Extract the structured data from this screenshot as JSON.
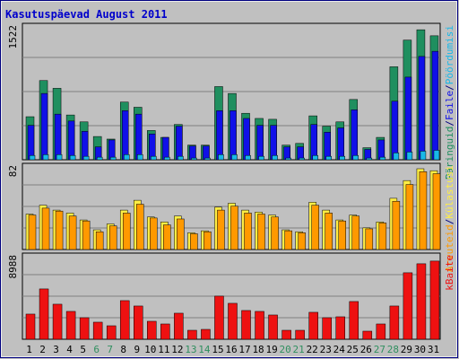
{
  "title": "Kasutuspäevad August 2011",
  "colors": {
    "background": "#c0c0c0",
    "border": "#000080",
    "title": "#0000cc",
    "label": "#000000",
    "weekend": "#2f8f5f",
    "hits": "#1f8f5f",
    "files": "#1010e8",
    "pages": "#18b8e8",
    "visits_dark": "#ff9900",
    "visits_light": "#ffee44",
    "kbytes": "#ee1111"
  },
  "chart_data": [
    {
      "type": "bar",
      "panel": "top",
      "ymax_label": "1522",
      "categories": [
        "1",
        "2",
        "3",
        "4",
        "5",
        "6",
        "7",
        "8",
        "9",
        "10",
        "11",
        "12",
        "13",
        "14",
        "15",
        "16",
        "17",
        "18",
        "19",
        "20",
        "21",
        "22",
        "23",
        "24",
        "25",
        "26",
        "27",
        "28",
        "29",
        "30",
        "31"
      ],
      "weekend_days": [
        "6",
        "7",
        "13",
        "14",
        "20",
        "21",
        "27",
        "28"
      ],
      "ylim": [
        0,
        1522
      ],
      "series": [
        {
          "name": "Päringuid",
          "color_key": "hits",
          "values": [
            500,
            920,
            830,
            520,
            440,
            270,
            240,
            670,
            610,
            340,
            260,
            410,
            170,
            170,
            850,
            770,
            540,
            480,
            470,
            170,
            190,
            510,
            390,
            440,
            700,
            140,
            260,
            1080,
            1390,
            1510,
            1440
          ]
        },
        {
          "name": "Faile",
          "color_key": "files",
          "values": [
            400,
            770,
            530,
            450,
            330,
            150,
            230,
            570,
            530,
            300,
            260,
            390,
            160,
            160,
            570,
            570,
            480,
            400,
            400,
            150,
            150,
            410,
            320,
            370,
            580,
            120,
            230,
            680,
            960,
            1200,
            1260
          ]
        },
        {
          "name": "Pöördumisi",
          "color_key": "pages",
          "values": [
            50,
            60,
            60,
            50,
            40,
            30,
            30,
            60,
            60,
            40,
            30,
            40,
            20,
            20,
            60,
            60,
            50,
            40,
            50,
            20,
            20,
            50,
            40,
            40,
            50,
            20,
            30,
            80,
            90,
            100,
            110
          ]
        }
      ],
      "legend": [
        "Päringuid",
        "Faile",
        "Pöördumisi"
      ],
      "legend_separators": [
        "/",
        "/"
      ]
    },
    {
      "type": "bar",
      "panel": "middle",
      "ymax_label": "82",
      "ylim": [
        0,
        82
      ],
      "series": [
        {
          "name": "Külastusi",
          "color_key": "visits_light",
          "values": [
            36,
            45,
            40,
            37,
            30,
            20,
            26,
            40,
            50,
            33,
            28,
            34,
            17,
            19,
            43,
            47,
            40,
            38,
            35,
            20,
            18,
            48,
            40,
            30,
            35,
            22,
            28,
            52,
            70,
            82,
            80
          ]
        },
        {
          "name": "Arvuteid",
          "color_key": "visits_dark",
          "values": [
            35,
            42,
            39,
            34,
            29,
            18,
            24,
            37,
            46,
            32,
            25,
            31,
            16,
            18,
            40,
            44,
            37,
            36,
            33,
            19,
            17,
            45,
            37,
            29,
            34,
            21,
            27,
            49,
            66,
            79,
            77
          ]
        }
      ],
      "legend": [
        "Arvuteid",
        "Külastusi"
      ],
      "legend_separators": [
        "/"
      ]
    },
    {
      "type": "bar",
      "panel": "bottom",
      "ymax_label": "8988",
      "ylim": [
        0,
        8988
      ],
      "series": [
        {
          "name": "kBaite",
          "color_key": "kbytes",
          "values": [
            2800,
            5600,
            3900,
            3100,
            2400,
            1900,
            1500,
            4300,
            3700,
            2000,
            1700,
            2900,
            1000,
            1100,
            4800,
            4000,
            3200,
            3100,
            2700,
            1000,
            1000,
            3000,
            2400,
            2500,
            4200,
            900,
            1700,
            3700,
            7400,
            8400,
            8700
          ]
        }
      ],
      "legend": [
        "kBaite"
      ]
    }
  ]
}
